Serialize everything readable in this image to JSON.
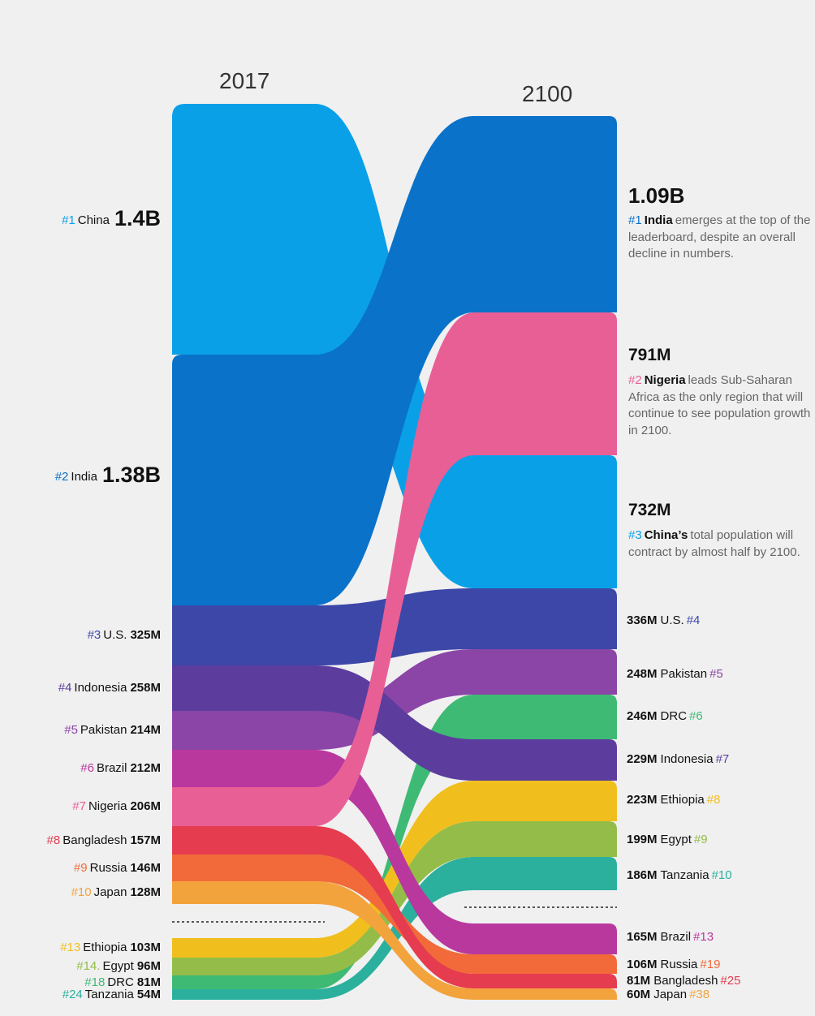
{
  "chart_data": {
    "type": "slope",
    "years": [
      "2017",
      "2100"
    ],
    "series": [
      {
        "name": "China",
        "color": "#0aa0e8",
        "left_rank": "#1",
        "left_value": 1400,
        "left_label": "1.4B",
        "right_rank": "#3",
        "right_value": 732,
        "right_label": "732M"
      },
      {
        "name": "India",
        "color": "#0a72c9",
        "left_rank": "#2",
        "left_value": 1380,
        "left_label": "1.38B",
        "right_rank": "#1",
        "right_value": 1090,
        "right_label": "1.09B"
      },
      {
        "name": "U.S.",
        "color": "#3c47a8",
        "left_rank": "#3",
        "left_value": 325,
        "left_label": "325M",
        "right_rank": "#4",
        "right_value": 336,
        "right_label": "336M"
      },
      {
        "name": "Indonesia",
        "color": "#5c3d9e",
        "left_rank": "#4",
        "left_value": 258,
        "left_label": "258M",
        "right_rank": "#7",
        "right_value": 229,
        "right_label": "229M"
      },
      {
        "name": "Pakistan",
        "color": "#8a45a6",
        "left_rank": "#5",
        "left_value": 214,
        "left_label": "214M",
        "right_rank": "#5",
        "right_value": 248,
        "right_label": "248M"
      },
      {
        "name": "Brazil",
        "color": "#b8389e",
        "left_rank": "#6",
        "left_value": 212,
        "left_label": "212M",
        "right_rank": "#13",
        "right_value": 165,
        "right_label": "165M"
      },
      {
        "name": "Nigeria",
        "color": "#e85f96",
        "left_rank": "#7",
        "left_value": 206,
        "left_label": "206M",
        "right_rank": "#2",
        "right_value": 791,
        "right_label": "791M"
      },
      {
        "name": "Bangladesh",
        "color": "#e53c4f",
        "left_rank": "#8",
        "left_value": 157,
        "left_label": "157M",
        "right_rank": "#25",
        "right_value": 81,
        "right_label": "81M"
      },
      {
        "name": "Russia",
        "color": "#f26a3a",
        "left_rank": "#9",
        "left_value": 146,
        "left_label": "146M",
        "right_rank": "#19",
        "right_value": 106,
        "right_label": "106M"
      },
      {
        "name": "Japan",
        "color": "#f3a33c",
        "left_rank": "#10",
        "left_value": 128,
        "left_label": "128M",
        "right_rank": "#38",
        "right_value": 60,
        "right_label": "60M"
      },
      {
        "name": "Ethiopia",
        "color": "#f1bf1d",
        "left_rank": "#13",
        "left_value": 103,
        "left_label": "103M",
        "right_rank": "#8",
        "right_value": 223,
        "right_label": "223M"
      },
      {
        "name": "Egypt",
        "color": "#93bd48",
        "left_rank": "#14.",
        "left_value": 96,
        "left_label": "96M",
        "right_rank": "#9",
        "right_value": 199,
        "right_label": "199M"
      },
      {
        "name": "DRC",
        "color": "#3fba74",
        "left_rank": "#18",
        "left_value": 81,
        "left_label": "81M",
        "right_rank": "#6",
        "right_value": 246,
        "right_label": "246M"
      },
      {
        "name": "Tanzania",
        "color": "#2bb09e",
        "left_rank": "#24",
        "left_value": 54,
        "left_label": "54M",
        "right_rank": "#10",
        "right_value": 186,
        "right_label": "186M"
      }
    ]
  },
  "callouts": {
    "india": {
      "value": "1.09B",
      "rank": "#1",
      "name": "India",
      "text": "emerges at the top of the leaderboard, despite an overall decline in numbers."
    },
    "nigeria": {
      "value": "791M",
      "rank": "#2",
      "name": "Nigeria",
      "text": "leads Sub-Saharan Africa as the only region that will continue to see population growth in 2100."
    },
    "china": {
      "value": "732M",
      "rank": "#3",
      "name": "China’s",
      "text": "total population will contract by almost half by 2100."
    }
  }
}
